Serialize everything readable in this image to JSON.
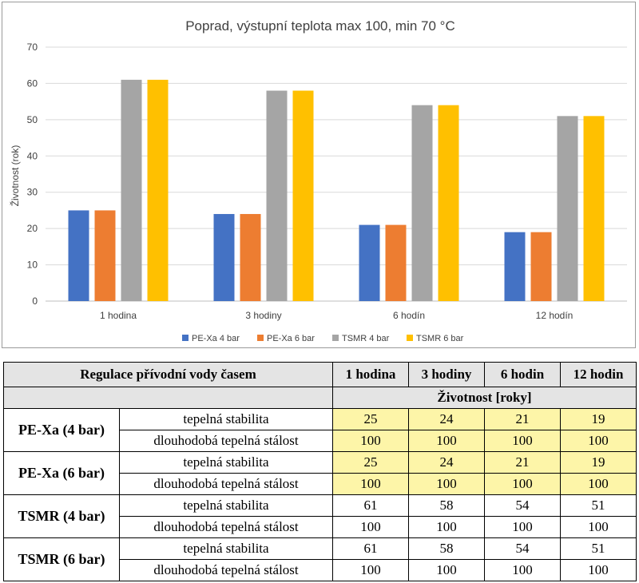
{
  "chart_data": {
    "type": "bar",
    "title": "Poprad, výstupní teplota max 100, min 70 °C",
    "ylabel": "Životnost (rok)",
    "xlabel": "",
    "ylim": [
      0,
      70
    ],
    "yticks": [
      "0",
      "10",
      "20",
      "30",
      "40",
      "50",
      "60",
      "70"
    ],
    "categories": [
      "1 hodina",
      "3 hodiny",
      "6 hodín",
      "12 hodín"
    ],
    "series": [
      {
        "name": "PE-Xa 4 bar",
        "color": "#4472c4",
        "values": [
          25,
          24,
          21,
          19
        ]
      },
      {
        "name": "PE-Xa 6 bar",
        "color": "#ed7d31",
        "values": [
          25,
          24,
          21,
          19
        ]
      },
      {
        "name": "TSMR 4 bar",
        "color": "#a5a5a5",
        "values": [
          61,
          58,
          54,
          51
        ]
      },
      {
        "name": "TSMR 6 bar",
        "color": "#ffc000",
        "values": [
          61,
          58,
          54,
          51
        ]
      }
    ],
    "grid": true,
    "legend": "bottom"
  },
  "table": {
    "title": "Regulace přívodní vody časem",
    "columns": [
      "1 hodina",
      "3 hodiny",
      "6 hodin",
      "12 hodin"
    ],
    "subheader": "Životnost  [roky]",
    "groups": [
      {
        "label": "PE-Xa (4 bar)",
        "rows": [
          {
            "label": "tepelná stabilita",
            "values": [
              "25",
              "24",
              "21",
              "19"
            ]
          },
          {
            "label": "dlouhodobá tepelná stálost",
            "values": [
              "100",
              "100",
              "100",
              "100"
            ]
          }
        ]
      },
      {
        "label": "PE-Xa (6 bar)",
        "rows": [
          {
            "label": "tepelná stabilita",
            "values": [
              "25",
              "24",
              "21",
              "19"
            ]
          },
          {
            "label": "dlouhodobá tepelná stálost",
            "values": [
              "100",
              "100",
              "100",
              "100"
            ]
          }
        ]
      },
      {
        "label": "TSMR (4 bar)",
        "rows": [
          {
            "label": "tepelná stabilita",
            "values": [
              "61",
              "58",
              "54",
              "51"
            ]
          },
          {
            "label": "dlouhodobá tepelná stálost",
            "values": [
              "100",
              "100",
              "100",
              "100"
            ]
          }
        ]
      },
      {
        "label": "TSMR (6 bar)",
        "rows": [
          {
            "label": "tepelná stabilita",
            "values": [
              "61",
              "58",
              "54",
              "51"
            ]
          },
          {
            "label": "dlouhodobá tepelná stálost",
            "values": [
              "100",
              "100",
              "100",
              "100"
            ]
          }
        ]
      }
    ],
    "highlight_color": "#fdf5a8",
    "header_color": "#e4e4e4"
  }
}
